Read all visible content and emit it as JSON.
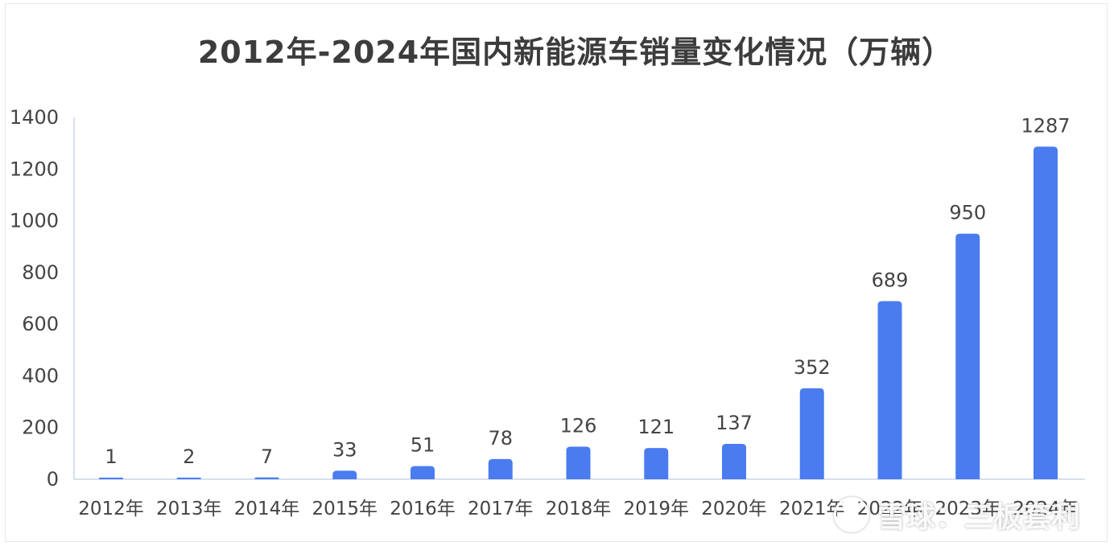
{
  "chart_data": {
    "type": "bar",
    "title": "2012年-2024年国内新能源车销量变化情况（万辆）",
    "categories": [
      "2012年",
      "2013年",
      "2014年",
      "2015年",
      "2016年",
      "2017年",
      "2018年",
      "2019年",
      "2020年",
      "2021年",
      "2022年",
      "2023年",
      "2024年"
    ],
    "values": [
      1,
      2,
      7,
      33,
      51,
      78,
      126,
      121,
      137,
      352,
      689,
      950,
      1287
    ],
    "ylim": [
      0,
      1400
    ],
    "yticks": [
      "0",
      "200",
      "400",
      "600",
      "800",
      "1000",
      "1200",
      "1400"
    ],
    "grid": false,
    "legend": "none",
    "bar_color": "#4a7cf0",
    "axis_color": "#c9d6ea",
    "label_color": "#444444"
  },
  "watermark": {
    "text": "雪球：三板套利"
  }
}
